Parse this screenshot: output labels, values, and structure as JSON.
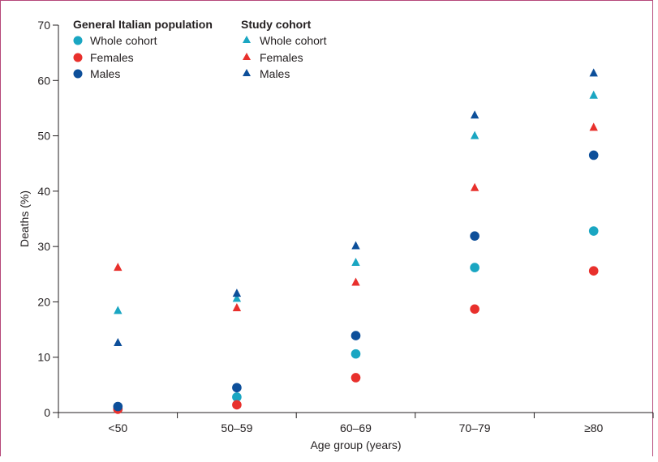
{
  "chart_data": {
    "type": "scatter",
    "categories": [
      "<50",
      "50–59",
      "60–69",
      "70–79",
      "≥80"
    ],
    "xlabel": "Age group (years)",
    "ylabel": "Deaths (%)",
    "ylim": [
      0,
      70
    ],
    "yticks": [
      0,
      10,
      20,
      30,
      40,
      50,
      60,
      70
    ],
    "grid": false,
    "legend": {
      "placement": "top-left",
      "groups": [
        {
          "title": "General Italian population",
          "marker": "circle",
          "entries": [
            "Whole cohort",
            "Females",
            "Males"
          ]
        },
        {
          "title": "Study cohort",
          "marker": "triangle",
          "entries": [
            "Whole cohort",
            "Females",
            "Males"
          ]
        }
      ]
    },
    "series": [
      {
        "group": "General Italian population",
        "name": "Whole cohort",
        "marker": "circle",
        "color": "#1aa6c2",
        "values": [
          0.7,
          2.8,
          10.6,
          26.2,
          32.8
        ]
      },
      {
        "group": "General Italian population",
        "name": "Females",
        "marker": "circle",
        "color": "#e8302c",
        "values": [
          0.6,
          1.4,
          6.3,
          18.7,
          25.6
        ]
      },
      {
        "group": "General Italian population",
        "name": "Males",
        "marker": "circle",
        "color": "#0d4f9a",
        "values": [
          1.1,
          4.5,
          13.9,
          31.9,
          46.5
        ]
      },
      {
        "group": "Study cohort",
        "name": "Whole cohort",
        "marker": "triangle",
        "color": "#1aa6c2",
        "values": [
          18.4,
          20.6,
          27.1,
          50.0,
          57.3
        ]
      },
      {
        "group": "Study cohort",
        "name": "Females",
        "marker": "triangle",
        "color": "#e8302c",
        "values": [
          26.2,
          18.9,
          23.5,
          40.6,
          51.5
        ]
      },
      {
        "group": "Study cohort",
        "name": "Males",
        "marker": "triangle",
        "color": "#0d4f9a",
        "values": [
          12.6,
          21.5,
          30.1,
          53.7,
          61.3
        ]
      }
    ]
  }
}
